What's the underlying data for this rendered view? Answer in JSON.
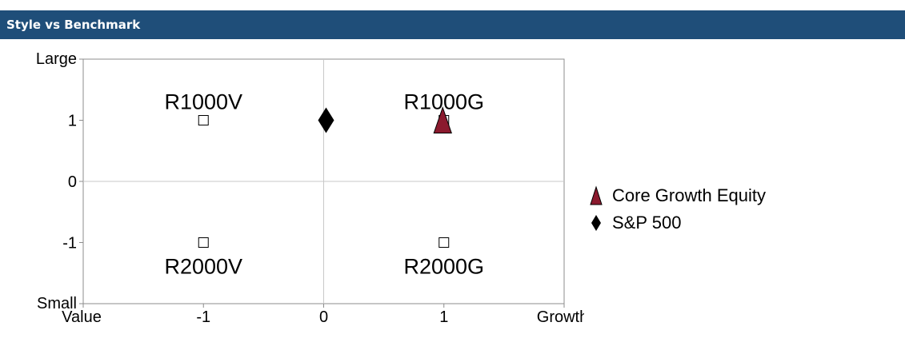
{
  "header": {
    "title": "Style vs Benchmark"
  },
  "colors": {
    "header_bg": "#1f4e79",
    "fund": "#8b1a2e",
    "benchmark": "#000000"
  },
  "chart_data": {
    "type": "scatter",
    "xlim": [
      -2,
      2
    ],
    "ylim": [
      -2,
      2
    ],
    "x_ticks": [
      -1,
      0,
      1
    ],
    "y_ticks": [
      1,
      0,
      -1
    ],
    "x_end_labels": {
      "left": "Value",
      "right": "Growth"
    },
    "y_end_labels": {
      "top": "Large",
      "bottom": "Small"
    },
    "grid": "zero-lines",
    "style_boxes": [
      {
        "label": "R1000V",
        "x": -1,
        "y": 1
      },
      {
        "label": "R1000G",
        "x": 1,
        "y": 1
      },
      {
        "label": "R2000V",
        "x": -1,
        "y": -1
      },
      {
        "label": "R2000G",
        "x": 1,
        "y": -1
      }
    ],
    "series": [
      {
        "name": "Core Growth Equity",
        "marker": "triangle",
        "color": "#8b1a2e",
        "x": 0.99,
        "y": 1.0
      },
      {
        "name": "S&P 500",
        "marker": "diamond",
        "color": "#000000",
        "x": 0.02,
        "y": 1.0
      }
    ],
    "legend_position": "right"
  }
}
